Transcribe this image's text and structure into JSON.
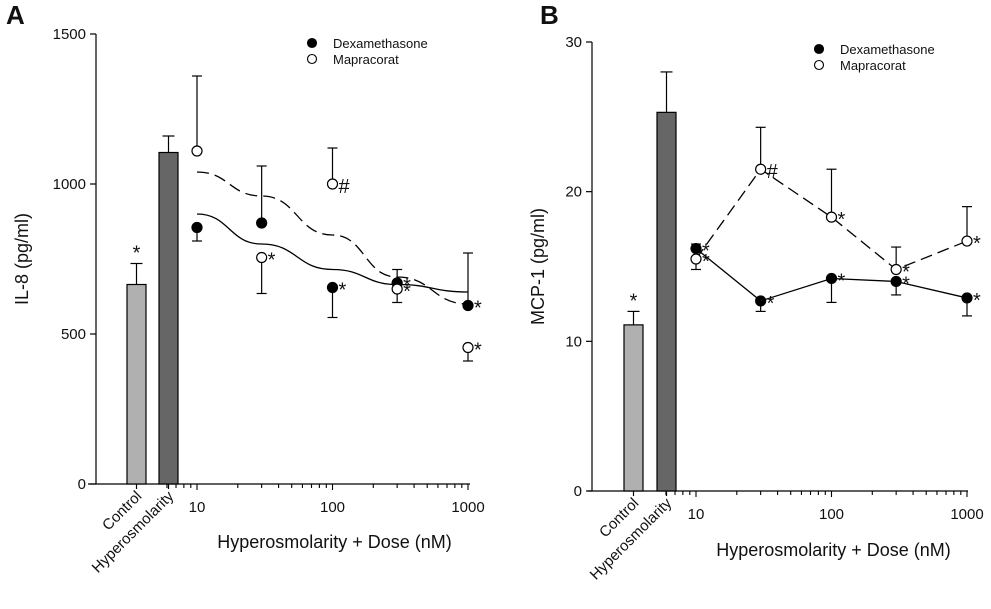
{
  "colors": {
    "control_bar": "#b0b0b0",
    "hyperosmolarity_bar": "#666666",
    "axis": "#000000",
    "marker_filled": "#000000",
    "marker_open": "#ffffff"
  },
  "chart_data": [
    {
      "panel": "A",
      "type": "scatter",
      "title": "",
      "ylabel": "IL-8 (pg/ml)",
      "xlabel": "Hyperosmolarity + Dose (nM)",
      "ylim": [
        0,
        1500
      ],
      "yticks": [
        0,
        500,
        1000,
        1500
      ],
      "xscale": "log",
      "xlim": [
        6,
        1000
      ],
      "xticks": [
        10,
        100,
        1000
      ],
      "x_tick_labels": [
        "10",
        "100",
        "1000"
      ],
      "legend_position": "top-right",
      "bars": [
        {
          "label": "Control",
          "value": 665,
          "error": 70,
          "annotation": "*"
        },
        {
          "label": "Hyperosmolarity",
          "value": 1105,
          "error": 55,
          "annotation": ""
        }
      ],
      "series": [
        {
          "name": "Dexamethasone",
          "marker": "filled-circle",
          "fit_line": "solid",
          "x": [
            10,
            30,
            100,
            300,
            1000
          ],
          "values": [
            855,
            870,
            655,
            670,
            595
          ],
          "error_dir": [
            "down",
            "up",
            "down",
            "up",
            "up"
          ],
          "errors": [
            45,
            190,
            100,
            45,
            175
          ],
          "annotations": [
            "",
            "",
            "*",
            "*",
            "*"
          ],
          "fit": [
            900,
            800,
            715,
            665,
            640
          ]
        },
        {
          "name": "Mapracorat",
          "marker": "open-circle",
          "fit_line": "dashed",
          "x": [
            10,
            30,
            100,
            300,
            1000
          ],
          "values": [
            1110,
            755,
            1000,
            650,
            455
          ],
          "error_dir": [
            "up",
            "down",
            "up",
            "down",
            "down"
          ],
          "errors": [
            250,
            120,
            120,
            45,
            45
          ],
          "annotations": [
            "",
            "*",
            "#",
            "*",
            "*"
          ],
          "fit": [
            1040,
            960,
            830,
            690,
            600
          ]
        }
      ]
    },
    {
      "panel": "B",
      "type": "line",
      "title": "",
      "ylabel": "MCP-1 (pg/ml)",
      "xlabel": "Hyperosmolarity + Dose (nM)",
      "ylim": [
        0,
        30
      ],
      "yticks": [
        0,
        10,
        20,
        30
      ],
      "xscale": "log",
      "xlim": [
        6,
        1000
      ],
      "xticks": [
        10,
        100,
        1000
      ],
      "x_tick_labels": [
        "10",
        "100",
        "1000"
      ],
      "legend_position": "top-right",
      "bars": [
        {
          "label": "Control",
          "value": 11.1,
          "error": 0.9,
          "annotation": "*"
        },
        {
          "label": "Hyperosmolarity",
          "value": 25.3,
          "error": 2.7,
          "annotation": ""
        }
      ],
      "series": [
        {
          "name": "Dexamethasone",
          "marker": "filled-circle",
          "line": "solid",
          "x": [
            10,
            30,
            100,
            300,
            1000
          ],
          "values": [
            16.2,
            12.7,
            14.2,
            14.0,
            12.9
          ],
          "error_dir": [
            "up",
            "down",
            "down",
            "down",
            "down"
          ],
          "errors": [
            0.3,
            0.7,
            1.6,
            0.9,
            1.2
          ],
          "annotations": [
            "*",
            "*",
            "*",
            "*",
            "*"
          ]
        },
        {
          "name": "Mapracorat",
          "marker": "open-circle",
          "line": "dashed",
          "x": [
            10,
            30,
            100,
            300,
            1000
          ],
          "values": [
            15.5,
            21.5,
            18.3,
            14.8,
            16.7
          ],
          "error_dir": [
            "down",
            "up",
            "up",
            "up",
            "up"
          ],
          "errors": [
            0.7,
            2.8,
            3.2,
            1.5,
            2.3
          ],
          "annotations": [
            "*",
            "#",
            "*",
            "*",
            "*"
          ]
        }
      ]
    }
  ]
}
